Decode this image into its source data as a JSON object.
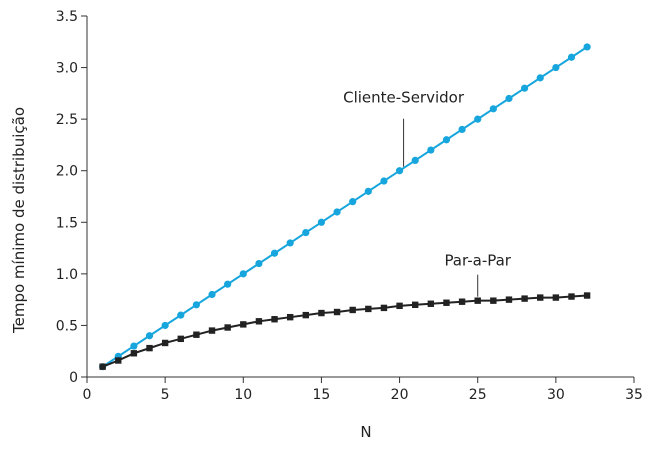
{
  "chart_data": {
    "type": "line",
    "xlabel": "N",
    "ylabel": "Tempo mínimo de distribuição",
    "xlim": [
      0,
      35
    ],
    "ylim": [
      0,
      3.5
    ],
    "xticks": [
      "0",
      "5",
      "10",
      "15",
      "20",
      "25",
      "30",
      "35"
    ],
    "yticks": [
      "0",
      "0.5",
      "1.0",
      "1.5",
      "2.0",
      "2.5",
      "3.0",
      "3.5"
    ],
    "grid": false,
    "series": [
      {
        "name": "Cliente-Servidor",
        "color": "#16a5dd",
        "marker": "circle",
        "x": [
          1,
          2,
          3,
          4,
          5,
          6,
          7,
          8,
          9,
          10,
          11,
          12,
          13,
          14,
          15,
          16,
          17,
          18,
          19,
          20,
          21,
          22,
          23,
          24,
          25,
          26,
          27,
          28,
          29,
          30,
          31,
          32
        ],
        "values": [
          0.1,
          0.2,
          0.3,
          0.4,
          0.5,
          0.6,
          0.7,
          0.8,
          0.9,
          1.0,
          1.1,
          1.2,
          1.3,
          1.4,
          1.5,
          1.6,
          1.7,
          1.8,
          1.9,
          2.0,
          2.1,
          2.2,
          2.3,
          2.4,
          2.5,
          2.6,
          2.7,
          2.8,
          2.9,
          3.0,
          3.1,
          3.2
        ]
      },
      {
        "name": "Par-a-Par",
        "color": "#222222",
        "marker": "square",
        "x": [
          1,
          2,
          3,
          4,
          5,
          6,
          7,
          8,
          9,
          10,
          11,
          12,
          13,
          14,
          15,
          16,
          17,
          18,
          19,
          20,
          21,
          22,
          23,
          24,
          25,
          26,
          27,
          28,
          29,
          30,
          31,
          32
        ],
        "values": [
          0.1,
          0.16,
          0.23,
          0.28,
          0.33,
          0.37,
          0.41,
          0.45,
          0.48,
          0.51,
          0.54,
          0.56,
          0.58,
          0.6,
          0.62,
          0.63,
          0.65,
          0.66,
          0.67,
          0.69,
          0.7,
          0.71,
          0.72,
          0.73,
          0.74,
          0.74,
          0.75,
          0.76,
          0.77,
          0.77,
          0.78,
          0.79
        ]
      }
    ],
    "annotations": [
      {
        "text": "Cliente-Servidor",
        "series": 0,
        "point_index": 19
      },
      {
        "text": "Par-a-Par",
        "series": 1,
        "point_index": 24
      }
    ]
  }
}
